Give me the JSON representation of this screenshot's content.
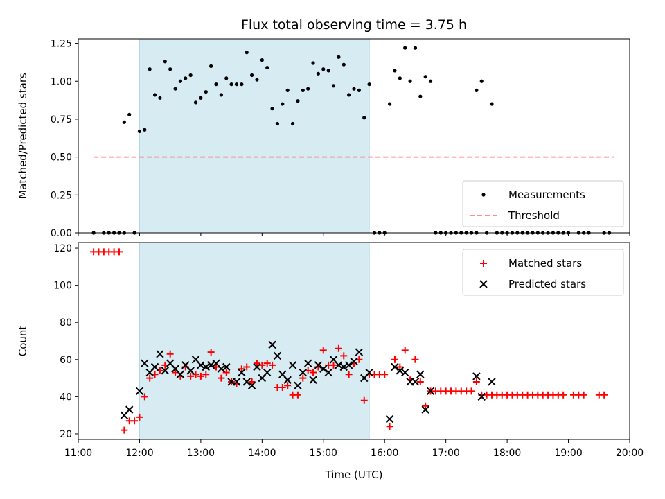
{
  "chart_data": [
    {
      "type": "scatter",
      "title": "Flux total observing time = 3.75 h",
      "xlabel": "",
      "ylabel": "Matched/Predicted stars",
      "xlim": [
        "11:00",
        "20:00"
      ],
      "ylim": [
        0,
        1.28
      ],
      "yticks": [
        "0.00",
        "0.25",
        "0.50",
        "0.75",
        "1.00",
        "1.25"
      ],
      "shaded_interval": [
        "12:00",
        "15:45"
      ],
      "legend": "bottom-right",
      "series": [
        {
          "name": "Measurements",
          "marker": "dot",
          "color": "#000000",
          "points": [
            [
              "11:15",
              0
            ],
            [
              "11:25",
              0
            ],
            [
              "11:30",
              0
            ],
            [
              "11:35",
              0
            ],
            [
              "11:40",
              0
            ],
            [
              "11:45",
              0
            ],
            [
              "11:55",
              0
            ],
            [
              "11:45",
              0.73
            ],
            [
              "11:50",
              0.78
            ],
            [
              "12:00",
              0.67
            ],
            [
              "12:05",
              0.68
            ],
            [
              "12:10",
              1.08
            ],
            [
              "12:15",
              0.91
            ],
            [
              "12:20",
              0.89
            ],
            [
              "12:25",
              1.13
            ],
            [
              "12:30",
              1.08
            ],
            [
              "12:35",
              0.95
            ],
            [
              "12:40",
              1.0
            ],
            [
              "12:45",
              1.02
            ],
            [
              "12:50",
              1.04
            ],
            [
              "12:55",
              0.86
            ],
            [
              "13:00",
              0.89
            ],
            [
              "13:05",
              0.93
            ],
            [
              "13:10",
              1.1
            ],
            [
              "13:15",
              0.98
            ],
            [
              "13:20",
              0.91
            ],
            [
              "13:25",
              1.02
            ],
            [
              "13:30",
              0.98
            ],
            [
              "13:35",
              0.98
            ],
            [
              "13:40",
              0.98
            ],
            [
              "13:45",
              1.19
            ],
            [
              "13:50",
              1.04
            ],
            [
              "13:55",
              1.01
            ],
            [
              "14:00",
              1.14
            ],
            [
              "14:05",
              1.09
            ],
            [
              "14:10",
              0.82
            ],
            [
              "14:15",
              0.72
            ],
            [
              "14:20",
              0.85
            ],
            [
              "14:25",
              0.94
            ],
            [
              "14:30",
              0.72
            ],
            [
              "14:35",
              0.87
            ],
            [
              "14:40",
              0.94
            ],
            [
              "14:45",
              0.95
            ],
            [
              "14:50",
              1.12
            ],
            [
              "14:55",
              1.05
            ],
            [
              "15:00",
              1.08
            ],
            [
              "15:05",
              1.07
            ],
            [
              "15:10",
              0.97
            ],
            [
              "15:15",
              1.16
            ],
            [
              "15:20",
              1.11
            ],
            [
              "15:25",
              0.91
            ],
            [
              "15:30",
              0.95
            ],
            [
              "15:35",
              0.94
            ],
            [
              "15:40",
              0.76
            ],
            [
              "15:45",
              0.98
            ],
            [
              "15:50",
              0
            ],
            [
              "15:55",
              0
            ],
            [
              "16:00",
              0
            ],
            [
              "16:05",
              0.85
            ],
            [
              "16:10",
              1.07
            ],
            [
              "16:15",
              1.02
            ],
            [
              "16:20",
              1.22
            ],
            [
              "16:25",
              1.0
            ],
            [
              "16:30",
              1.22
            ],
            [
              "16:35",
              0.9
            ],
            [
              "16:40",
              1.03
            ],
            [
              "16:45",
              1.0
            ],
            [
              "16:50",
              0
            ],
            [
              "16:55",
              0
            ],
            [
              "17:00",
              0
            ],
            [
              "17:05",
              0
            ],
            [
              "17:10",
              0
            ],
            [
              "17:15",
              0
            ],
            [
              "17:20",
              0
            ],
            [
              "17:25",
              0
            ],
            [
              "17:30",
              0
            ],
            [
              "17:30",
              0.94
            ],
            [
              "17:35",
              1.0
            ],
            [
              "17:40",
              0
            ],
            [
              "17:45",
              0.85
            ],
            [
              "17:50",
              0
            ],
            [
              "17:55",
              0
            ],
            [
              "18:00",
              0
            ],
            [
              "18:05",
              0
            ],
            [
              "18:10",
              0
            ],
            [
              "18:15",
              0
            ],
            [
              "18:20",
              0
            ],
            [
              "18:25",
              0
            ],
            [
              "18:30",
              0
            ],
            [
              "18:35",
              0
            ],
            [
              "18:40",
              0
            ],
            [
              "18:45",
              0
            ],
            [
              "18:50",
              0
            ],
            [
              "18:55",
              0
            ],
            [
              "19:00",
              0
            ],
            [
              "19:10",
              0
            ],
            [
              "19:15",
              0
            ],
            [
              "19:20",
              0
            ],
            [
              "19:35",
              0
            ],
            [
              "19:40",
              0
            ]
          ]
        },
        {
          "name": "Threshold",
          "marker": "dashed-line",
          "color": "#ff7f7f",
          "points": [
            [
              "11:15",
              0.5
            ],
            [
              "19:45",
              0.5
            ]
          ]
        }
      ]
    },
    {
      "type": "scatter",
      "title": "",
      "xlabel": "Time (UTC)",
      "ylabel": "Count",
      "xlim": [
        "11:00",
        "20:00"
      ],
      "ylim": [
        17,
        123
      ],
      "xticks": [
        "11:00",
        "12:00",
        "13:00",
        "14:00",
        "15:00",
        "16:00",
        "17:00",
        "18:00",
        "19:00",
        "20:00"
      ],
      "yticks": [
        "20",
        "40",
        "60",
        "80",
        "100",
        "120"
      ],
      "shaded_interval": [
        "12:00",
        "15:45"
      ],
      "legend": "top-right",
      "series": [
        {
          "name": "Matched stars",
          "marker": "plus",
          "color": "#ff0000",
          "points": [
            [
              "11:15",
              118
            ],
            [
              "11:20",
              118
            ],
            [
              "11:25",
              118
            ],
            [
              "11:30",
              118
            ],
            [
              "11:35",
              118
            ],
            [
              "11:40",
              118
            ],
            [
              "11:45",
              22
            ],
            [
              "11:50",
              27
            ],
            [
              "11:55",
              27
            ],
            [
              "12:00",
              29
            ],
            [
              "12:05",
              40
            ],
            [
              "12:10",
              50
            ],
            [
              "12:15",
              52
            ],
            [
              "12:20",
              54
            ],
            [
              "12:25",
              57
            ],
            [
              "12:30",
              63
            ],
            [
              "12:35",
              53
            ],
            [
              "12:40",
              51
            ],
            [
              "12:45",
              56
            ],
            [
              "12:50",
              51
            ],
            [
              "12:55",
              52
            ],
            [
              "13:00",
              51
            ],
            [
              "13:05",
              52
            ],
            [
              "13:10",
              64
            ],
            [
              "13:15",
              56
            ],
            [
              "13:20",
              50
            ],
            [
              "13:25",
              53
            ],
            [
              "13:30",
              48
            ],
            [
              "13:35",
              47
            ],
            [
              "13:40",
              55
            ],
            [
              "13:45",
              56
            ],
            [
              "13:50",
              48
            ],
            [
              "13:55",
              58
            ],
            [
              "14:00",
              57
            ],
            [
              "14:05",
              58
            ],
            [
              "14:10",
              57
            ],
            [
              "14:15",
              45
            ],
            [
              "14:20",
              45
            ],
            [
              "14:25",
              46
            ],
            [
              "14:30",
              41
            ],
            [
              "14:35",
              41
            ],
            [
              "14:40",
              50
            ],
            [
              "14:45",
              54
            ],
            [
              "14:50",
              53
            ],
            [
              "14:55",
              56
            ],
            [
              "15:00",
              65
            ],
            [
              "15:05",
              57
            ],
            [
              "15:10",
              57
            ],
            [
              "15:15",
              66
            ],
            [
              "15:20",
              62
            ],
            [
              "15:25",
              52
            ],
            [
              "15:30",
              58
            ],
            [
              "15:35",
              60
            ],
            [
              "15:40",
              38
            ],
            [
              "15:45",
              52
            ],
            [
              "15:50",
              52
            ],
            [
              "15:55",
              52
            ],
            [
              "16:00",
              52
            ],
            [
              "16:05",
              24
            ],
            [
              "16:10",
              60
            ],
            [
              "16:15",
              56
            ],
            [
              "16:20",
              65
            ],
            [
              "16:25",
              49
            ],
            [
              "16:30",
              60
            ],
            [
              "16:35",
              48
            ],
            [
              "16:40",
              35
            ],
            [
              "16:45",
              43
            ],
            [
              "16:50",
              43
            ],
            [
              "16:55",
              43
            ],
            [
              "17:00",
              43
            ],
            [
              "17:05",
              43
            ],
            [
              "17:10",
              43
            ],
            [
              "17:15",
              43
            ],
            [
              "17:20",
              43
            ],
            [
              "17:25",
              43
            ],
            [
              "17:30",
              48
            ],
            [
              "17:35",
              41
            ],
            [
              "17:40",
              41
            ],
            [
              "17:45",
              41
            ],
            [
              "17:50",
              41
            ],
            [
              "17:55",
              41
            ],
            [
              "18:00",
              41
            ],
            [
              "18:05",
              41
            ],
            [
              "18:10",
              41
            ],
            [
              "18:15",
              41
            ],
            [
              "18:20",
              41
            ],
            [
              "18:25",
              41
            ],
            [
              "18:30",
              41
            ],
            [
              "18:35",
              41
            ],
            [
              "18:40",
              41
            ],
            [
              "18:45",
              41
            ],
            [
              "18:50",
              41
            ],
            [
              "18:55",
              41
            ],
            [
              "19:05",
              41
            ],
            [
              "19:10",
              41
            ],
            [
              "19:15",
              41
            ],
            [
              "19:30",
              41
            ],
            [
              "19:35",
              41
            ]
          ]
        },
        {
          "name": "Predicted stars",
          "marker": "cross",
          "color": "#000000",
          "points": [
            [
              "11:45",
              30
            ],
            [
              "11:50",
              33
            ],
            [
              "12:00",
              43
            ],
            [
              "12:05",
              58
            ],
            [
              "12:10",
              53
            ],
            [
              "12:15",
              56
            ],
            [
              "12:20",
              63
            ],
            [
              "12:25",
              54
            ],
            [
              "12:30",
              58
            ],
            [
              "12:35",
              55
            ],
            [
              "12:40",
              52
            ],
            [
              "12:45",
              57
            ],
            [
              "12:50",
              54
            ],
            [
              "12:55",
              60
            ],
            [
              "13:00",
              57
            ],
            [
              "13:05",
              56
            ],
            [
              "13:10",
              57
            ],
            [
              "13:15",
              58
            ],
            [
              "13:20",
              55
            ],
            [
              "13:25",
              56
            ],
            [
              "13:30",
              48
            ],
            [
              "13:35",
              48
            ],
            [
              "13:40",
              53
            ],
            [
              "13:45",
              48
            ],
            [
              "13:50",
              46
            ],
            [
              "13:55",
              56
            ],
            [
              "14:00",
              50
            ],
            [
              "14:05",
              53
            ],
            [
              "14:10",
              68
            ],
            [
              "14:15",
              62
            ],
            [
              "14:20",
              52
            ],
            [
              "14:25",
              49
            ],
            [
              "14:30",
              57
            ],
            [
              "14:35",
              46
            ],
            [
              "14:40",
              53
            ],
            [
              "14:45",
              58
            ],
            [
              "14:50",
              49
            ],
            [
              "14:55",
              57
            ],
            [
              "15:00",
              55
            ],
            [
              "15:05",
              53
            ],
            [
              "15:10",
              60
            ],
            [
              "15:15",
              57
            ],
            [
              "15:20",
              56
            ],
            [
              "15:25",
              57
            ],
            [
              "15:30",
              59
            ],
            [
              "15:35",
              64
            ],
            [
              "15:40",
              50
            ],
            [
              "15:45",
              53
            ],
            [
              "16:05",
              28
            ],
            [
              "16:10",
              56
            ],
            [
              "16:15",
              54
            ],
            [
              "16:20",
              53
            ],
            [
              "16:25",
              48
            ],
            [
              "16:30",
              48
            ],
            [
              "16:35",
              52
            ],
            [
              "16:40",
              33
            ],
            [
              "16:45",
              43
            ],
            [
              "17:30",
              51
            ],
            [
              "17:35",
              40
            ],
            [
              "17:45",
              48
            ]
          ]
        }
      ]
    }
  ]
}
